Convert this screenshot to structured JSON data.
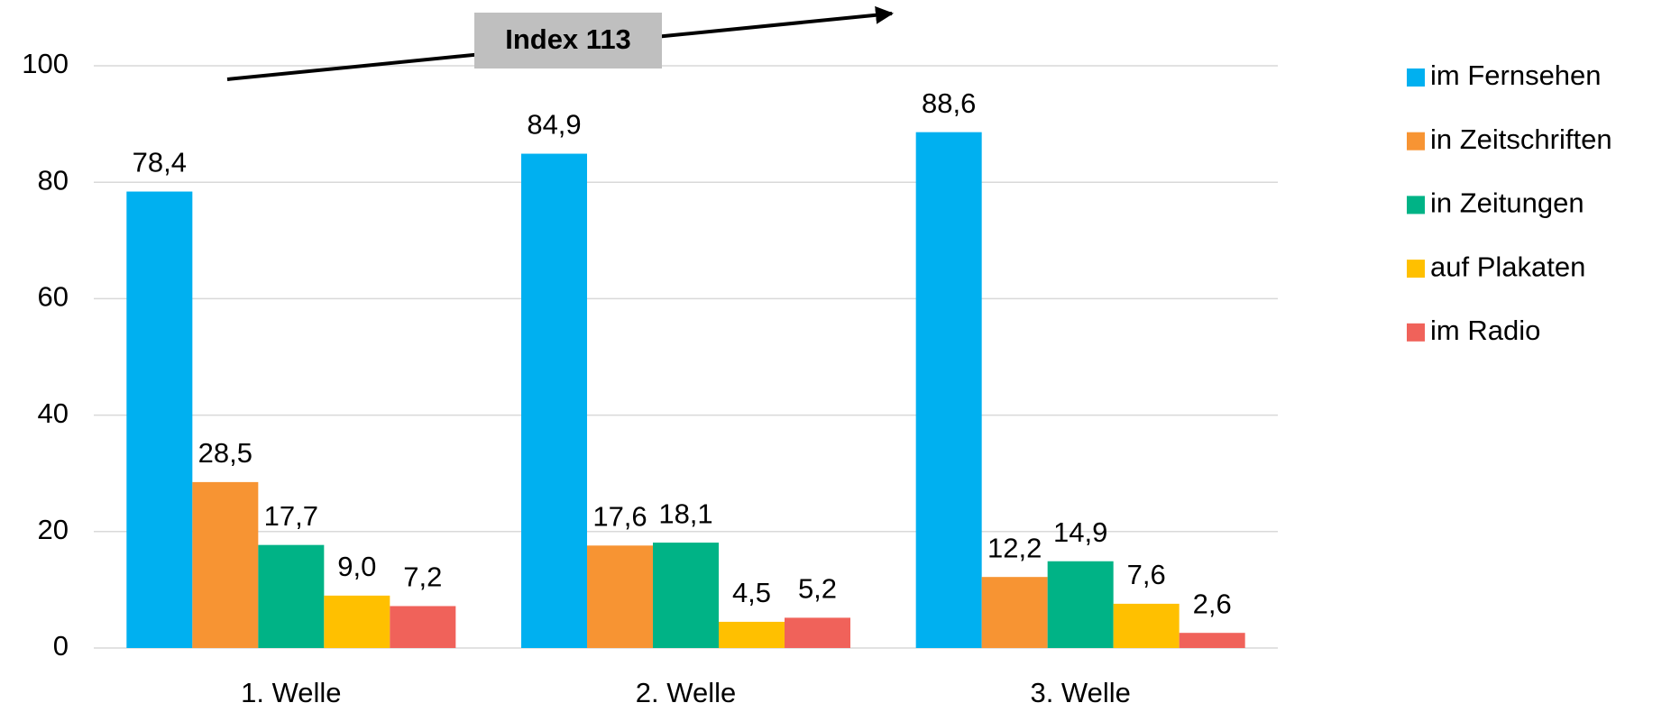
{
  "chart_data": {
    "type": "bar",
    "categories": [
      "1. Welle",
      "2. Welle",
      "3. Welle"
    ],
    "series": [
      {
        "name": "im Fernsehen",
        "color": "#00b0f0",
        "values": [
          78.4,
          84.9,
          88.6
        ],
        "value_labels": [
          "78,4",
          "84,9",
          "88,6"
        ]
      },
      {
        "name": "in Zeitschriften",
        "color": "#f79433",
        "values": [
          28.5,
          17.6,
          12.2
        ],
        "value_labels": [
          "28,5",
          "17,6",
          "12,2"
        ]
      },
      {
        "name": "in Zeitungen",
        "color": "#00b386",
        "values": [
          17.7,
          18.1,
          14.9
        ],
        "value_labels": [
          "17,7",
          "18,1",
          "14,9"
        ]
      },
      {
        "name": "auf Plakaten",
        "color": "#ffc000",
        "values": [
          9.0,
          4.5,
          7.6
        ],
        "value_labels": [
          "9,0",
          "4,5",
          "7,6"
        ]
      },
      {
        "name": "im Radio",
        "color": "#f0625a",
        "values": [
          7.2,
          5.2,
          2.6
        ],
        "value_labels": [
          "7,2",
          "5,2",
          "2,6"
        ]
      }
    ],
    "annotation": "Index 113",
    "ylim": [
      0,
      100
    ],
    "yticks": [
      0,
      20,
      40,
      60,
      80,
      100
    ],
    "grid": true,
    "legend": "right"
  }
}
